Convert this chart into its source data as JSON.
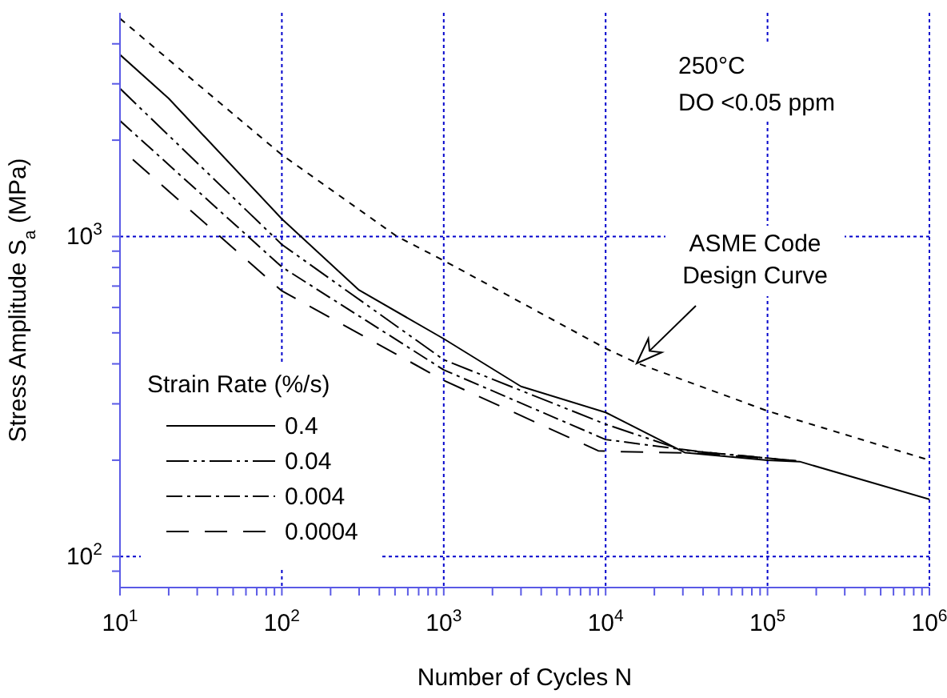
{
  "chart_data": {
    "type": "line",
    "xlabel": "Number of Cycles N",
    "ylabel": "Stress Amplitude S$_{a}$ (MPa)",
    "legend_title": "Strain Rate (%/s)",
    "legend": "bottom left",
    "grid": true,
    "log": "xy",
    "marker": "none",
    "xlim": [
      10,
      1000000
    ],
    "ylim": [
      80,
      5000
    ],
    "xticks": [
      {
        "value": 10,
        "label": "10$^{1}$"
      },
      {
        "value": 20,
        "label": null
      },
      {
        "value": 30,
        "label": null
      },
      {
        "value": 40,
        "label": null
      },
      {
        "value": 50,
        "label": null
      },
      {
        "value": 60,
        "label": null
      },
      {
        "value": 70,
        "label": null
      },
      {
        "value": 80,
        "label": null
      },
      {
        "value": 90,
        "label": null
      },
      {
        "value": 100,
        "label": "10$^{2}$"
      },
      {
        "value": 200,
        "label": null
      },
      {
        "value": 300,
        "label": null
      },
      {
        "value": 400,
        "label": null
      },
      {
        "value": 500,
        "label": null
      },
      {
        "value": 600,
        "label": null
      },
      {
        "value": 700,
        "label": null
      },
      {
        "value": 800,
        "label": null
      },
      {
        "value": 900,
        "label": null
      },
      {
        "value": 1000,
        "label": "10$^{3}$"
      },
      {
        "value": 2000,
        "label": null
      },
      {
        "value": 3000,
        "label": null
      },
      {
        "value": 4000,
        "label": null
      },
      {
        "value": 5000,
        "label": null
      },
      {
        "value": 6000,
        "label": null
      },
      {
        "value": 7000,
        "label": null
      },
      {
        "value": 8000,
        "label": null
      },
      {
        "value": 9000,
        "label": null
      },
      {
        "value": 10000,
        "label": "10$^{4}$"
      },
      {
        "value": 20000,
        "label": null
      },
      {
        "value": 30000,
        "label": null
      },
      {
        "value": 40000,
        "label": null
      },
      {
        "value": 50000,
        "label": null
      },
      {
        "value": 60000,
        "label": null
      },
      {
        "value": 70000,
        "label": null
      },
      {
        "value": 80000,
        "label": null
      },
      {
        "value": 90000,
        "label": null
      },
      {
        "value": 100000,
        "label": "10$^{5}$"
      },
      {
        "value": 200000,
        "label": null
      },
      {
        "value": 300000,
        "label": null
      },
      {
        "value": 400000,
        "label": null
      },
      {
        "value": 500000,
        "label": null
      },
      {
        "value": 600000,
        "label": null
      },
      {
        "value": 700000,
        "label": null
      },
      {
        "value": 800000,
        "label": null
      },
      {
        "value": 900000,
        "label": null
      },
      {
        "value": 1000000,
        "label": "10$^{6}$"
      }
    ],
    "yticks": [
      {
        "value": 90,
        "label": null
      },
      {
        "value": 100,
        "label": "10$^{2}$"
      },
      {
        "value": 200,
        "label": null
      },
      {
        "value": 300,
        "label": null
      },
      {
        "value": 400,
        "label": null
      },
      {
        "value": 500,
        "label": null
      },
      {
        "value": 600,
        "label": null
      },
      {
        "value": 700,
        "label": null
      },
      {
        "value": 800,
        "label": null
      },
      {
        "value": 900,
        "label": null
      },
      {
        "value": 1000,
        "label": "10$^{3}$"
      },
      {
        "value": 2000,
        "label": null
      },
      {
        "value": 3000,
        "label": null
      },
      {
        "value": 4000,
        "label": null
      }
    ],
    "series": [
      {
        "name": "0.4",
        "color": "#000000",
        "line_style": "solid",
        "x": [
          10,
          20,
          100,
          300,
          1000,
          3000,
          10000,
          31000,
          100000,
          158000,
          1000000
        ],
        "values": [
          3700,
          2700,
          1135,
          680,
          479,
          340,
          282,
          211,
          200,
          198,
          151
        ]
      },
      {
        "name": "0.04",
        "color": "#000000",
        "line_style": "dashdotdot",
        "x": [
          10,
          100,
          1000,
          10000,
          30000,
          150000
        ],
        "values": [
          2900,
          944,
          412,
          259,
          215,
          199
        ]
      },
      {
        "name": "0.004",
        "color": "#000000",
        "line_style": "dashdot",
        "x": [
          10,
          100,
          1000,
          10000,
          40000,
          150000
        ],
        "values": [
          2300,
          803,
          383,
          232,
          212,
          199
        ]
      },
      {
        "name": "0.0004",
        "color": "#000000",
        "line_style": "longdash",
        "x": [
          12,
          100,
          1000,
          9000,
          11000,
          40000,
          150000
        ],
        "values": [
          1740,
          676,
          355,
          214,
          213,
          210,
          199
        ]
      },
      {
        "color": "#000000",
        "line_style": "dashed",
        "x": [
          10,
          30,
          100,
          515,
          1000,
          10000,
          15500,
          100000,
          1000000
        ],
        "values": [
          4800,
          3000,
          1800,
          1000,
          841,
          447,
          403,
          285,
          200
        ]
      }
    ],
    "annotations": [
      "250°C\nDO <0.05 ppm",
      "ASME Code\nDesign Curve"
    ]
  }
}
